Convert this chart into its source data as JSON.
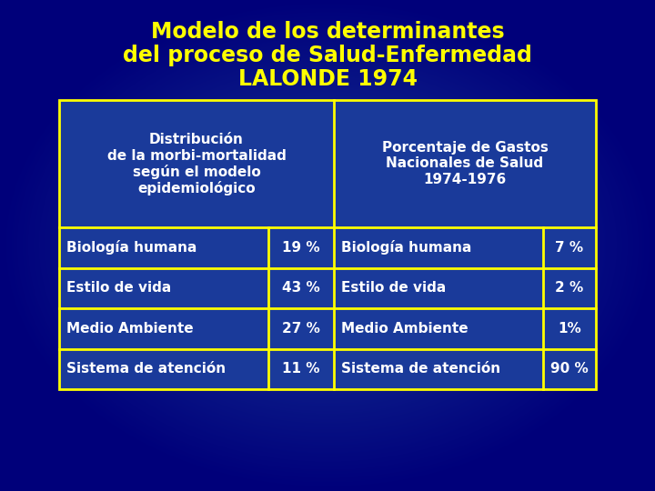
{
  "title_line1": "Modelo de los determinantes",
  "title_line2": "del proceso de Salud-Enfermedad",
  "title_line3": "LALONDE 1974",
  "title_color": "#FFFF00",
  "bg_color_dark": "#00007a",
  "bg_color_mid": "#1a3a9a",
  "table_bg": "#1a3a9a",
  "table_border_color": "#FFFF00",
  "text_color": "#FFFFFF",
  "header_left_lines": [
    "Distribución",
    "de la morbi-mortalidad",
    "según el modelo",
    "epidemiológico"
  ],
  "header_right_lines": [
    "Porcentaje de Gastos",
    "Nacionales de Salud",
    "1974-1976"
  ],
  "rows": [
    {
      "left_label": "Biología humana",
      "left_pct": "19 %",
      "right_label": "Biología humana",
      "right_pct": "7 %"
    },
    {
      "left_label": "Estilo de vida",
      "left_pct": "43 %",
      "right_label": "Estilo de vida",
      "right_pct": "2 %"
    },
    {
      "left_label": "Medio Ambiente",
      "left_pct": "27 %",
      "right_label": "Medio Ambiente",
      "right_pct": "1%"
    },
    {
      "left_label": "Sistema de atención",
      "left_pct": "11 %",
      "right_label": "Sistema de atención",
      "right_pct": "90 %"
    }
  ]
}
